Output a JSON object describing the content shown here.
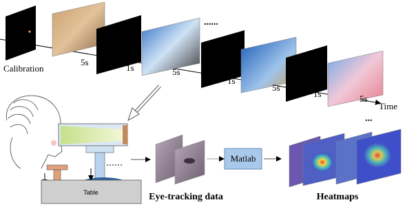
{
  "timeline": {
    "start_label": "Calibration",
    "durations": [
      "5s",
      "1s",
      "5s",
      "1s",
      "5s",
      "1s",
      "5s"
    ],
    "axis_label": "Time",
    "ellipsis": "......"
  },
  "setup": {
    "table": "Table"
  },
  "pipeline": {
    "input": "Eye-tracking data",
    "tool": "Matlab",
    "output": "Heatmaps",
    "ellipsis": "..."
  }
}
